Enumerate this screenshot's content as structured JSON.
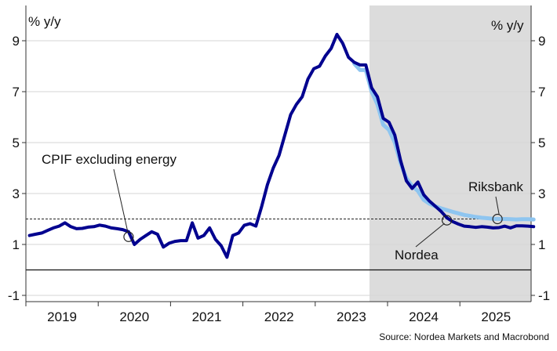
{
  "chart_data": {
    "type": "line",
    "ylabel_left": "% y/y",
    "ylabel_right": "% y/y",
    "ylim": [
      -1.5,
      10
    ],
    "yticks": [
      -1,
      1,
      3,
      5,
      7,
      9
    ],
    "xlim": [
      2018.5,
      2025.6
    ],
    "xtick_labels": [
      "2019",
      "2020",
      "2021",
      "2022",
      "2023",
      "2024",
      "2025"
    ],
    "xtick_positions": [
      2019.0,
      2020.0,
      2021.0,
      2022.0,
      2023.0,
      2024.0,
      2025.0
    ],
    "forecast_start": 2023.25,
    "reference_line": 2,
    "zero_line": 0,
    "annotations": {
      "cpif": "CPIF excluding energy",
      "nordea": "Nordea",
      "riksbank": "Riksbank"
    },
    "source": "Source: Nordea Markets and Macrobond",
    "colors": {
      "nordea": "#00008f",
      "riksbank": "#8ec5f0",
      "forecast_shade": "#dcdcdc"
    },
    "series": [
      {
        "name": "Nordea",
        "points": [
          [
            2018.55,
            1.35
          ],
          [
            2018.63,
            1.4
          ],
          [
            2018.72,
            1.45
          ],
          [
            2018.8,
            1.55
          ],
          [
            2018.88,
            1.65
          ],
          [
            2018.96,
            1.72
          ],
          [
            2019.04,
            1.85
          ],
          [
            2019.12,
            1.7
          ],
          [
            2019.2,
            1.62
          ],
          [
            2019.28,
            1.63
          ],
          [
            2019.36,
            1.68
          ],
          [
            2019.44,
            1.7
          ],
          [
            2019.52,
            1.76
          ],
          [
            2019.6,
            1.72
          ],
          [
            2019.68,
            1.65
          ],
          [
            2019.76,
            1.62
          ],
          [
            2019.84,
            1.58
          ],
          [
            2019.92,
            1.5
          ],
          [
            2020.0,
            1.0
          ],
          [
            2020.08,
            1.2
          ],
          [
            2020.16,
            1.35
          ],
          [
            2020.24,
            1.5
          ],
          [
            2020.32,
            1.4
          ],
          [
            2020.4,
            0.9
          ],
          [
            2020.48,
            1.05
          ],
          [
            2020.56,
            1.12
          ],
          [
            2020.64,
            1.15
          ],
          [
            2020.72,
            1.15
          ],
          [
            2020.8,
            1.85
          ],
          [
            2020.88,
            1.25
          ],
          [
            2020.96,
            1.35
          ],
          [
            2021.04,
            1.65
          ],
          [
            2021.12,
            1.2
          ],
          [
            2021.2,
            0.95
          ],
          [
            2021.28,
            0.5
          ],
          [
            2021.36,
            1.35
          ],
          [
            2021.44,
            1.45
          ],
          [
            2021.52,
            1.75
          ],
          [
            2021.6,
            1.82
          ],
          [
            2021.68,
            1.72
          ],
          [
            2021.76,
            2.5
          ],
          [
            2021.84,
            3.35
          ],
          [
            2021.92,
            4.0
          ],
          [
            2022.0,
            4.5
          ],
          [
            2022.08,
            5.3
          ],
          [
            2022.16,
            6.1
          ],
          [
            2022.24,
            6.5
          ],
          [
            2022.32,
            6.8
          ],
          [
            2022.4,
            7.5
          ],
          [
            2022.48,
            7.9
          ],
          [
            2022.56,
            8.0
          ],
          [
            2022.64,
            8.4
          ],
          [
            2022.72,
            8.7
          ],
          [
            2022.8,
            9.25
          ],
          [
            2022.88,
            8.9
          ],
          [
            2022.96,
            8.35
          ],
          [
            2023.04,
            8.15
          ],
          [
            2023.12,
            8.05
          ],
          [
            2023.2,
            8.05
          ],
          [
            2023.28,
            7.15
          ],
          [
            2023.36,
            6.8
          ],
          [
            2023.44,
            5.95
          ],
          [
            2023.52,
            5.8
          ],
          [
            2023.6,
            5.3
          ],
          [
            2023.68,
            4.3
          ],
          [
            2023.76,
            3.5
          ],
          [
            2023.84,
            3.2
          ],
          [
            2023.92,
            3.45
          ],
          [
            2024.0,
            2.95
          ],
          [
            2024.08,
            2.7
          ],
          [
            2024.16,
            2.5
          ],
          [
            2024.24,
            2.3
          ],
          [
            2024.32,
            2.05
          ],
          [
            2024.4,
            1.9
          ],
          [
            2024.48,
            1.8
          ],
          [
            2024.56,
            1.72
          ],
          [
            2024.64,
            1.7
          ],
          [
            2024.72,
            1.67
          ],
          [
            2024.8,
            1.7
          ],
          [
            2024.88,
            1.68
          ],
          [
            2024.96,
            1.65
          ],
          [
            2025.04,
            1.66
          ],
          [
            2025.12,
            1.72
          ],
          [
            2025.2,
            1.65
          ],
          [
            2025.28,
            1.73
          ],
          [
            2025.36,
            1.73
          ],
          [
            2025.44,
            1.72
          ],
          [
            2025.52,
            1.7
          ]
        ]
      },
      {
        "name": "Riksbank",
        "points": [
          [
            2023.04,
            8.1
          ],
          [
            2023.12,
            7.85
          ],
          [
            2023.2,
            7.85
          ],
          [
            2023.28,
            7.0
          ],
          [
            2023.36,
            6.5
          ],
          [
            2023.44,
            5.7
          ],
          [
            2023.52,
            5.5
          ],
          [
            2023.6,
            5.0
          ],
          [
            2023.68,
            4.2
          ],
          [
            2023.76,
            3.6
          ],
          [
            2023.84,
            3.3
          ],
          [
            2023.92,
            3.1
          ],
          [
            2024.0,
            2.75
          ],
          [
            2024.08,
            2.6
          ],
          [
            2024.16,
            2.5
          ],
          [
            2024.24,
            2.42
          ],
          [
            2024.32,
            2.35
          ],
          [
            2024.4,
            2.28
          ],
          [
            2024.48,
            2.22
          ],
          [
            2024.56,
            2.16
          ],
          [
            2024.64,
            2.12
          ],
          [
            2024.72,
            2.08
          ],
          [
            2024.8,
            2.05
          ],
          [
            2024.88,
            2.03
          ],
          [
            2024.96,
            2.01
          ],
          [
            2025.04,
            2.0
          ],
          [
            2025.12,
            2.0
          ],
          [
            2025.2,
            1.99
          ],
          [
            2025.28,
            1.98
          ],
          [
            2025.36,
            1.99
          ],
          [
            2025.44,
            1.99
          ],
          [
            2025.52,
            1.98
          ]
        ]
      }
    ],
    "markers": [
      {
        "series": "Nordea",
        "x": 2019.92,
        "y": 1.3
      },
      {
        "series": "Nordea",
        "x": 2024.32,
        "y": 1.95
      },
      {
        "series": "Riksbank",
        "x": 2025.02,
        "y": 2.0
      }
    ]
  }
}
